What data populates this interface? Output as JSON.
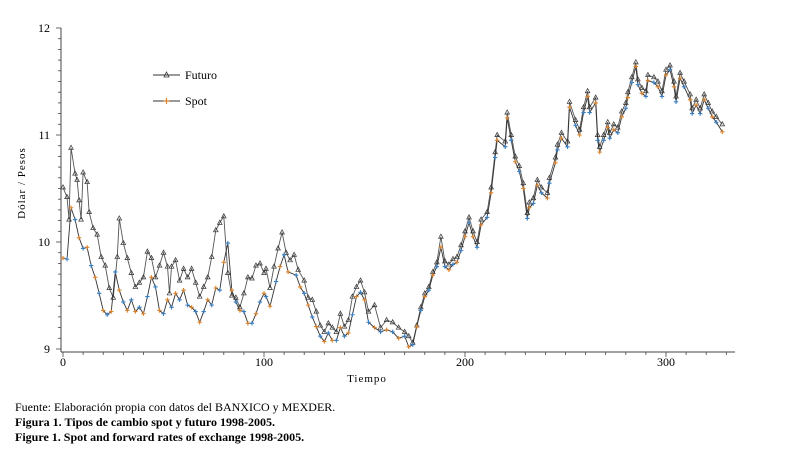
{
  "chart_data": {
    "type": "line",
    "title": "",
    "xlabel": "Tiempo",
    "ylabel": "Dólar / Pesos",
    "xlim": [
      0,
      330
    ],
    "ylim": [
      9,
      12
    ],
    "x_ticks": [
      "0",
      "100",
      "200",
      "300"
    ],
    "y_ticks": [
      "9",
      "10",
      "11",
      "12"
    ],
    "legend_position": "top-left",
    "grid": false,
    "series": [
      {
        "name": "Futuro",
        "marker": "triangle",
        "color": "#333333",
        "points": [
          [
            0,
            10.51
          ],
          [
            2,
            10.42
          ],
          [
            3,
            10.21
          ],
          [
            4,
            10.88
          ],
          [
            6,
            10.64
          ],
          [
            7,
            10.58
          ],
          [
            8,
            10.39
          ],
          [
            9,
            10.21
          ],
          [
            10,
            10.65
          ],
          [
            12,
            10.56
          ],
          [
            13,
            10.28
          ],
          [
            15,
            10.13
          ],
          [
            17,
            10.07
          ],
          [
            19,
            9.86
          ],
          [
            21,
            9.78
          ],
          [
            23,
            9.57
          ],
          [
            25,
            9.48
          ],
          [
            27,
            9.86
          ],
          [
            28,
            10.22
          ],
          [
            30,
            9.99
          ],
          [
            32,
            9.85
          ],
          [
            34,
            9.71
          ],
          [
            36,
            9.58
          ],
          [
            38,
            9.62
          ],
          [
            40,
            9.67
          ],
          [
            42,
            9.91
          ],
          [
            44,
            9.85
          ],
          [
            46,
            9.67
          ],
          [
            48,
            9.78
          ],
          [
            50,
            9.9
          ],
          [
            52,
            9.77
          ],
          [
            53,
            9.52
          ],
          [
            54,
            9.77
          ],
          [
            56,
            9.83
          ],
          [
            58,
            9.64
          ],
          [
            60,
            9.75
          ],
          [
            62,
            9.67
          ],
          [
            64,
            9.75
          ],
          [
            66,
            9.62
          ],
          [
            68,
            9.49
          ],
          [
            70,
            9.58
          ],
          [
            72,
            9.67
          ],
          [
            74,
            9.86
          ],
          [
            76,
            10.11
          ],
          [
            78,
            10.18
          ],
          [
            80,
            10.24
          ],
          [
            82,
            9.71
          ],
          [
            84,
            9.5
          ],
          [
            86,
            9.48
          ],
          [
            88,
            9.39
          ],
          [
            90,
            9.52
          ],
          [
            92,
            9.67
          ],
          [
            94,
            9.66
          ],
          [
            96,
            9.78
          ],
          [
            98,
            9.8
          ],
          [
            100,
            9.71
          ],
          [
            101,
            9.75
          ],
          [
            103,
            9.57
          ],
          [
            105,
            9.77
          ],
          [
            107,
            9.94
          ],
          [
            109,
            10.09
          ],
          [
            111,
            9.9
          ],
          [
            113,
            9.83
          ],
          [
            115,
            9.88
          ],
          [
            117,
            9.74
          ],
          [
            120,
            9.64
          ],
          [
            122,
            9.48
          ],
          [
            124,
            9.46
          ],
          [
            126,
            9.35
          ],
          [
            128,
            9.22
          ],
          [
            130,
            9.16
          ],
          [
            132,
            9.24
          ],
          [
            134,
            9.2
          ],
          [
            136,
            9.16
          ],
          [
            138,
            9.33
          ],
          [
            140,
            9.21
          ],
          [
            142,
            9.27
          ],
          [
            144,
            9.49
          ],
          [
            146,
            9.58
          ],
          [
            148,
            9.64
          ],
          [
            150,
            9.53
          ],
          [
            152,
            9.35
          ],
          [
            155,
            9.41
          ],
          [
            158,
            9.2
          ],
          [
            161,
            9.27
          ],
          [
            164,
            9.25
          ],
          [
            167,
            9.2
          ],
          [
            170,
            9.16
          ],
          [
            172,
            9.12
          ],
          [
            174,
            9.06
          ],
          [
            176,
            9.22
          ],
          [
            178,
            9.39
          ],
          [
            180,
            9.52
          ],
          [
            182,
            9.58
          ],
          [
            184,
            9.72
          ],
          [
            186,
            9.81
          ],
          [
            188,
            10.05
          ],
          [
            190,
            9.82
          ],
          [
            192,
            9.79
          ],
          [
            194,
            9.84
          ],
          [
            196,
            9.86
          ],
          [
            198,
            9.97
          ],
          [
            200,
            10.1
          ],
          [
            202,
            10.23
          ],
          [
            204,
            10.1
          ],
          [
            206,
            10.0
          ],
          [
            208,
            10.21
          ],
          [
            211,
            10.28
          ],
          [
            213,
            10.51
          ],
          [
            215,
            10.84
          ],
          [
            216,
            11.0
          ],
          [
            220,
            10.94
          ],
          [
            221,
            11.21
          ],
          [
            223,
            11.0
          ],
          [
            225,
            10.8
          ],
          [
            227,
            10.71
          ],
          [
            229,
            10.55
          ],
          [
            231,
            10.27
          ],
          [
            232,
            10.37
          ],
          [
            234,
            10.41
          ],
          [
            236,
            10.58
          ],
          [
            238,
            10.51
          ],
          [
            241,
            10.46
          ],
          [
            242,
            10.6
          ],
          [
            245,
            10.79
          ],
          [
            246,
            10.91
          ],
          [
            248,
            11.02
          ],
          [
            251,
            10.94
          ],
          [
            252,
            11.31
          ],
          [
            255,
            11.14
          ],
          [
            257,
            11.05
          ],
          [
            259,
            11.26
          ],
          [
            261,
            11.41
          ],
          [
            262,
            11.26
          ],
          [
            265,
            11.35
          ],
          [
            266,
            11.0
          ],
          [
            267,
            10.89
          ],
          [
            269,
            11.0
          ],
          [
            271,
            11.12
          ],
          [
            272,
            11.02
          ],
          [
            274,
            11.1
          ],
          [
            276,
            11.07
          ],
          [
            278,
            11.22
          ],
          [
            280,
            11.3
          ],
          [
            281,
            11.4
          ],
          [
            283,
            11.54
          ],
          [
            285,
            11.68
          ],
          [
            286,
            11.52
          ],
          [
            288,
            11.44
          ],
          [
            290,
            11.41
          ],
          [
            291,
            11.56
          ],
          [
            294,
            11.54
          ],
          [
            296,
            11.5
          ],
          [
            298,
            11.41
          ],
          [
            300,
            11.61
          ],
          [
            302,
            11.65
          ],
          [
            304,
            11.5
          ],
          [
            305,
            11.36
          ],
          [
            307,
            11.58
          ],
          [
            309,
            11.5
          ],
          [
            312,
            11.38
          ],
          [
            313,
            11.25
          ],
          [
            315,
            11.33
          ],
          [
            317,
            11.25
          ],
          [
            319,
            11.38
          ],
          [
            321,
            11.3
          ],
          [
            323,
            11.22
          ],
          [
            325,
            11.17
          ],
          [
            328,
            11.1
          ]
        ]
      },
      {
        "name": "Spot",
        "marker": "plus",
        "color": "#333333",
        "x": [
          0,
          2,
          4,
          6,
          8,
          10,
          12,
          14,
          16,
          18,
          20,
          22,
          24,
          26,
          28,
          30,
          32,
          34,
          36,
          38,
          40,
          42,
          44,
          46,
          48,
          50,
          52,
          54,
          56,
          58,
          60,
          62,
          64,
          66,
          68,
          70,
          72,
          74,
          76,
          78,
          80,
          82,
          84,
          86,
          88,
          90,
          92,
          94,
          96,
          98,
          100,
          101,
          103,
          106,
          108,
          110,
          112,
          116,
          118,
          120,
          122,
          124,
          126,
          128,
          130,
          132,
          134,
          136,
          138,
          140,
          142,
          144,
          146,
          148,
          150,
          152,
          155,
          158,
          161,
          164,
          167,
          170,
          172,
          174,
          176,
          178,
          180,
          182,
          184,
          186,
          188,
          190,
          192,
          194,
          196,
          198,
          200,
          202,
          204,
          206,
          208,
          211,
          213,
          215,
          216,
          220,
          221,
          223,
          225,
          227,
          229,
          231,
          232,
          234,
          236,
          238,
          241,
          242,
          245,
          246,
          248,
          251,
          252,
          255,
          257,
          259,
          261,
          262,
          265,
          266,
          267,
          269,
          271,
          272,
          274,
          276,
          278,
          280,
          281,
          283,
          285,
          286,
          288,
          290,
          291,
          294,
          296,
          298,
          300,
          302,
          304,
          305,
          307,
          309,
          312,
          313,
          315,
          317,
          319,
          321,
          323,
          325,
          328
        ],
        "values": [
          9.85,
          9.84,
          10.32,
          10.21,
          10.04,
          9.94,
          9.95,
          9.78,
          9.67,
          9.52,
          9.36,
          9.32,
          9.35,
          9.72,
          9.55,
          9.44,
          9.36,
          9.46,
          9.35,
          9.39,
          9.33,
          9.49,
          9.67,
          9.58,
          9.36,
          9.33,
          9.46,
          9.39,
          9.52,
          9.46,
          9.55,
          9.41,
          9.39,
          9.35,
          9.25,
          9.35,
          9.46,
          9.41,
          9.57,
          9.55,
          9.81,
          9.99,
          9.55,
          9.44,
          9.36,
          9.35,
          9.24,
          9.24,
          9.33,
          9.44,
          9.52,
          9.49,
          9.4,
          9.63,
          9.77,
          9.88,
          9.72,
          9.69,
          9.58,
          9.52,
          9.41,
          9.3,
          9.21,
          9.12,
          9.07,
          9.15,
          9.08,
          9.08,
          9.2,
          9.12,
          9.15,
          9.32,
          9.49,
          9.53,
          9.46,
          9.25,
          9.2,
          9.16,
          9.18,
          9.16,
          9.1,
          9.12,
          9.02,
          9.04,
          9.21,
          9.36,
          9.49,
          9.55,
          9.69,
          9.77,
          9.95,
          9.77,
          9.74,
          9.79,
          9.81,
          9.92,
          10.05,
          10.18,
          10.05,
          9.95,
          10.16,
          10.23,
          10.46,
          10.79,
          10.95,
          10.89,
          11.16,
          10.95,
          10.75,
          10.66,
          10.5,
          10.22,
          10.32,
          10.36,
          10.53,
          10.46,
          10.41,
          10.55,
          10.74,
          10.86,
          10.97,
          10.89,
          11.26,
          11.09,
          11.0,
          11.21,
          11.36,
          11.21,
          11.3,
          10.95,
          10.84,
          10.95,
          11.07,
          10.97,
          11.05,
          11.02,
          11.17,
          11.25,
          11.35,
          11.49,
          11.64,
          11.47,
          11.39,
          11.36,
          11.51,
          11.49,
          11.45,
          11.36,
          11.56,
          11.61,
          11.45,
          11.31,
          11.53,
          11.45,
          11.33,
          11.2,
          11.28,
          11.2,
          11.33,
          11.25,
          11.17,
          11.12,
          11.03
        ]
      }
    ]
  },
  "caption": {
    "source": "Fuente: Elaboración propia con datos del BANXICO y MEXDER.",
    "figure_es": "Figura 1. Tipos de cambio spot y futuro 1998-2005.",
    "figure_en": "Figure 1. Spot and forward rates of exchange 1998-2005."
  }
}
